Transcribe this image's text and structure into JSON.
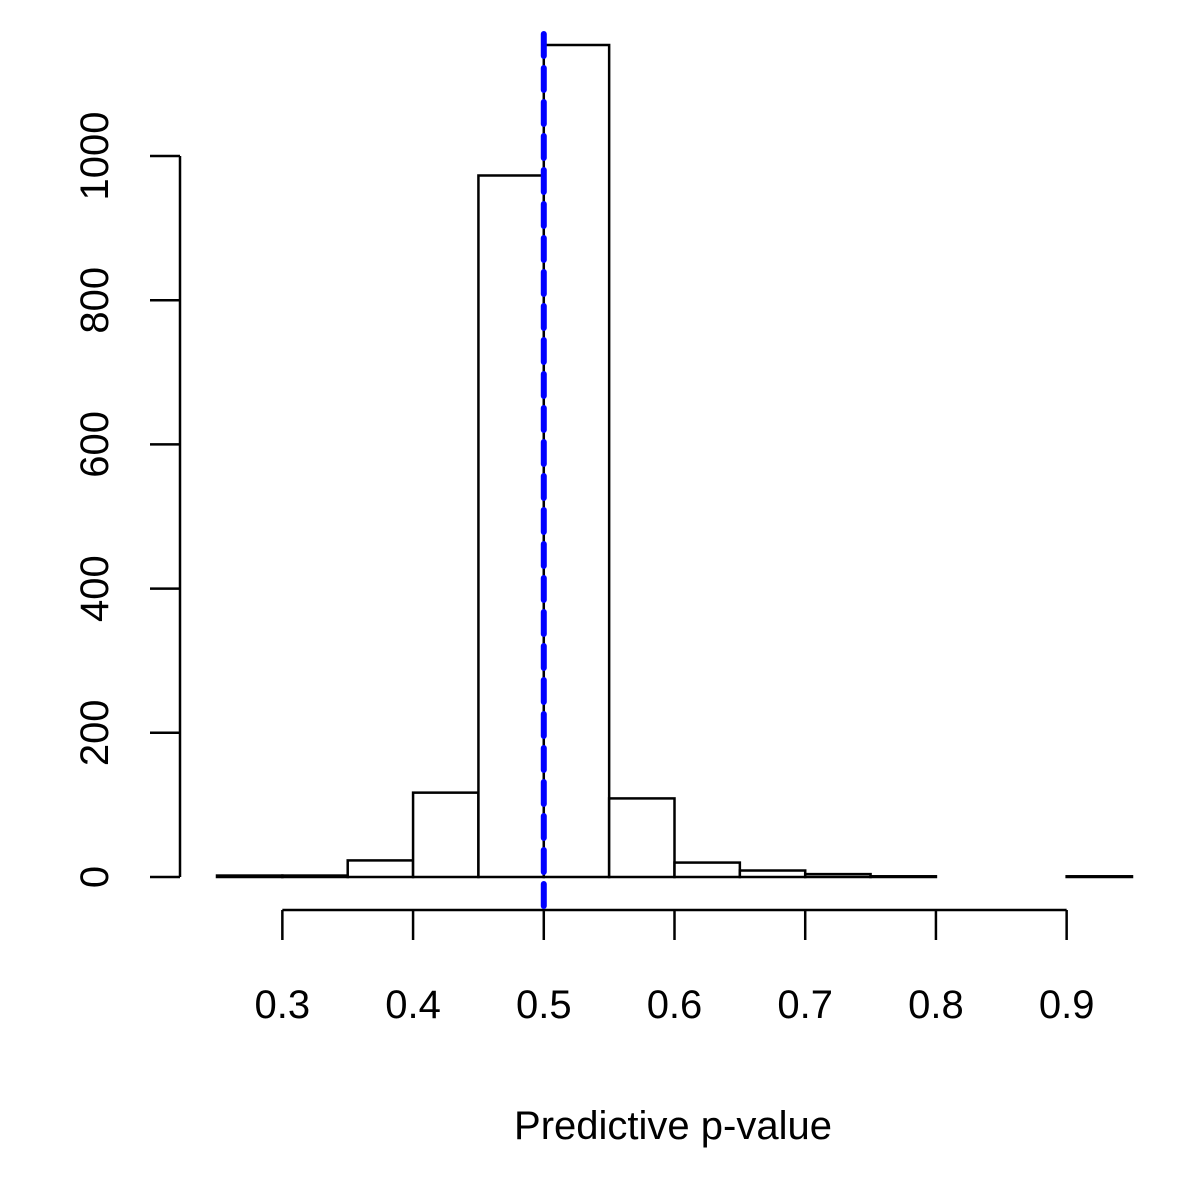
{
  "chart_data": {
    "type": "bar",
    "title": "",
    "xlabel": "Predictive p-value",
    "ylabel": "",
    "bins": [
      {
        "x0": 0.25,
        "x1": 0.3,
        "count": 2
      },
      {
        "x0": 0.3,
        "x1": 0.35,
        "count": 2
      },
      {
        "x0": 0.35,
        "x1": 0.4,
        "count": 23
      },
      {
        "x0": 0.4,
        "x1": 0.45,
        "count": 117
      },
      {
        "x0": 0.45,
        "x1": 0.5,
        "count": 973
      },
      {
        "x0": 0.5,
        "x1": 0.55,
        "count": 1154
      },
      {
        "x0": 0.55,
        "x1": 0.6,
        "count": 109
      },
      {
        "x0": 0.6,
        "x1": 0.65,
        "count": 20
      },
      {
        "x0": 0.65,
        "x1": 0.7,
        "count": 9
      },
      {
        "x0": 0.7,
        "x1": 0.75,
        "count": 4
      },
      {
        "x0": 0.75,
        "x1": 0.8,
        "count": 1
      },
      {
        "x0": 0.8,
        "x1": 0.85,
        "count": 0
      },
      {
        "x0": 0.85,
        "x1": 0.9,
        "count": 0
      },
      {
        "x0": 0.9,
        "x1": 0.95,
        "count": 1
      }
    ],
    "xlim": [
      0.25,
      0.95
    ],
    "ylim": [
      0,
      1154
    ],
    "xticks": [
      0.3,
      0.4,
      0.5,
      0.6,
      0.7,
      0.8,
      0.9
    ],
    "xtick_labels": [
      "0.3",
      "0.4",
      "0.5",
      "0.6",
      "0.7",
      "0.8",
      "0.9"
    ],
    "yticks": [
      0,
      200,
      400,
      600,
      800,
      1000
    ],
    "ytick_labels": [
      "0",
      "200",
      "400",
      "600",
      "800",
      "1000"
    ],
    "reference_line": {
      "x": 0.5,
      "style": "dashed",
      "color": "#0000ff"
    },
    "grid": false,
    "legend": "none",
    "colors": {
      "bar_fill": "#ffffff",
      "bar_stroke": "#000000",
      "axis": "#000000"
    }
  }
}
